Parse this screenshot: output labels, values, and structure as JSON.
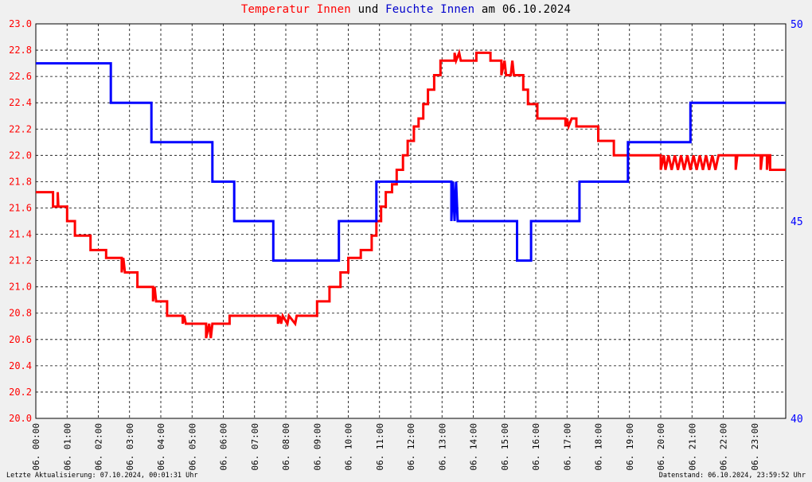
{
  "chart_data": {
    "type": "line",
    "title_parts": {
      "temp_label": "Temperatur Innen",
      "joiner": "und",
      "hum_label": "Feuchte Innen",
      "date_prefix": "am",
      "date": "06.10.2024"
    },
    "y_left": {
      "min": 20.0,
      "max": 23.0,
      "step": 0.2,
      "ticks": [
        "20.0",
        "20.2",
        "20.4",
        "20.6",
        "20.8",
        "21.0",
        "21.2",
        "21.4",
        "21.6",
        "21.8",
        "22.0",
        "22.2",
        "22.4",
        "22.6",
        "22.8",
        "23.0"
      ]
    },
    "y_right": {
      "min": 40,
      "max": 50,
      "ticks": [
        "40",
        "45",
        "50"
      ]
    },
    "x_range_hours": [
      0,
      24
    ],
    "x_ticks": [
      "06. 00:00",
      "06. 01:00",
      "06. 02:00",
      "06. 03:00",
      "06. 04:00",
      "06. 05:00",
      "06. 06:00",
      "06. 07:00",
      "06. 08:00",
      "06. 09:00",
      "06. 10:00",
      "06. 11:00",
      "06. 12:00",
      "06. 13:00",
      "06. 14:00",
      "06. 15:00",
      "06. 16:00",
      "06. 17:00",
      "06. 18:00",
      "06. 19:00",
      "06. 20:00",
      "06. 21:00",
      "06. 22:00",
      "06. 23:00"
    ],
    "grid": true,
    "colors": {
      "temperature": "#ff0000",
      "humidity": "#0000ff",
      "background": "#ffffff",
      "grid": "#000000"
    },
    "series": [
      {
        "axis": "left",
        "color": "#ff0000",
        "points": [
          [
            0.0,
            21.72
          ],
          [
            0.55,
            21.72
          ],
          [
            0.55,
            21.61
          ],
          [
            0.7,
            21.61
          ],
          [
            0.7,
            21.72
          ],
          [
            0.72,
            21.61
          ],
          [
            1.0,
            21.61
          ],
          [
            1.0,
            21.5
          ],
          [
            1.25,
            21.5
          ],
          [
            1.25,
            21.39
          ],
          [
            1.75,
            21.39
          ],
          [
            1.75,
            21.28
          ],
          [
            2.25,
            21.28
          ],
          [
            2.25,
            21.22
          ],
          [
            2.75,
            21.22
          ],
          [
            2.75,
            21.11
          ],
          [
            2.8,
            21.22
          ],
          [
            2.85,
            21.11
          ],
          [
            3.25,
            21.11
          ],
          [
            3.25,
            21.0
          ],
          [
            3.75,
            21.0
          ],
          [
            3.75,
            20.89
          ],
          [
            3.8,
            21.0
          ],
          [
            3.85,
            20.89
          ],
          [
            4.2,
            20.89
          ],
          [
            4.2,
            20.78
          ],
          [
            4.7,
            20.78
          ],
          [
            4.7,
            20.72
          ],
          [
            4.75,
            20.78
          ],
          [
            4.8,
            20.72
          ],
          [
            5.45,
            20.72
          ],
          [
            5.45,
            20.61
          ],
          [
            5.55,
            20.72
          ],
          [
            5.6,
            20.61
          ],
          [
            5.65,
            20.72
          ],
          [
            6.2,
            20.72
          ],
          [
            6.2,
            20.78
          ],
          [
            7.75,
            20.78
          ],
          [
            7.75,
            20.72
          ],
          [
            7.8,
            20.78
          ],
          [
            7.85,
            20.72
          ],
          [
            7.9,
            20.78
          ],
          [
            8.05,
            20.72
          ],
          [
            8.1,
            20.78
          ],
          [
            8.3,
            20.72
          ],
          [
            8.35,
            20.78
          ],
          [
            9.0,
            20.78
          ],
          [
            9.0,
            20.89
          ],
          [
            9.4,
            20.89
          ],
          [
            9.4,
            21.0
          ],
          [
            9.75,
            21.0
          ],
          [
            9.75,
            21.11
          ],
          [
            10.0,
            21.11
          ],
          [
            10.0,
            21.22
          ],
          [
            10.4,
            21.22
          ],
          [
            10.4,
            21.28
          ],
          [
            10.75,
            21.28
          ],
          [
            10.75,
            21.39
          ],
          [
            10.9,
            21.39
          ],
          [
            10.9,
            21.5
          ],
          [
            11.05,
            21.5
          ],
          [
            11.05,
            21.61
          ],
          [
            11.2,
            21.61
          ],
          [
            11.2,
            21.72
          ],
          [
            11.4,
            21.72
          ],
          [
            11.4,
            21.78
          ],
          [
            11.55,
            21.78
          ],
          [
            11.55,
            21.89
          ],
          [
            11.75,
            21.89
          ],
          [
            11.75,
            22.0
          ],
          [
            11.9,
            22.0
          ],
          [
            11.9,
            22.11
          ],
          [
            12.1,
            22.11
          ],
          [
            12.1,
            22.22
          ],
          [
            12.25,
            22.22
          ],
          [
            12.25,
            22.28
          ],
          [
            12.4,
            22.28
          ],
          [
            12.4,
            22.39
          ],
          [
            12.55,
            22.39
          ],
          [
            12.55,
            22.5
          ],
          [
            12.75,
            22.5
          ],
          [
            12.75,
            22.61
          ],
          [
            12.95,
            22.61
          ],
          [
            12.95,
            22.72
          ],
          [
            13.4,
            22.72
          ],
          [
            13.4,
            22.78
          ],
          [
            13.45,
            22.72
          ],
          [
            13.55,
            22.78
          ],
          [
            13.6,
            22.72
          ],
          [
            14.1,
            22.72
          ],
          [
            14.1,
            22.78
          ],
          [
            14.55,
            22.78
          ],
          [
            14.55,
            22.72
          ],
          [
            14.9,
            22.72
          ],
          [
            14.9,
            22.61
          ],
          [
            15.0,
            22.72
          ],
          [
            15.05,
            22.61
          ],
          [
            15.2,
            22.61
          ],
          [
            15.25,
            22.72
          ],
          [
            15.3,
            22.61
          ],
          [
            15.6,
            22.61
          ],
          [
            15.6,
            22.5
          ],
          [
            15.75,
            22.5
          ],
          [
            15.75,
            22.39
          ],
          [
            16.05,
            22.39
          ],
          [
            16.05,
            22.28
          ],
          [
            16.95,
            22.28
          ],
          [
            16.95,
            22.22
          ],
          [
            17.0,
            22.28
          ],
          [
            17.05,
            22.22
          ],
          [
            17.15,
            22.28
          ],
          [
            17.3,
            22.28
          ],
          [
            17.3,
            22.22
          ],
          [
            18.0,
            22.22
          ],
          [
            18.0,
            22.11
          ],
          [
            18.5,
            22.11
          ],
          [
            18.5,
            22.0
          ],
          [
            20.0,
            22.0
          ],
          [
            20.0,
            21.89
          ],
          [
            20.1,
            22.0
          ],
          [
            20.15,
            21.89
          ],
          [
            20.25,
            22.0
          ],
          [
            20.35,
            21.89
          ],
          [
            20.45,
            22.0
          ],
          [
            20.55,
            21.89
          ],
          [
            20.65,
            22.0
          ],
          [
            20.75,
            21.89
          ],
          [
            20.85,
            22.0
          ],
          [
            20.95,
            21.89
          ],
          [
            21.05,
            22.0
          ],
          [
            21.15,
            21.89
          ],
          [
            21.25,
            22.0
          ],
          [
            21.35,
            21.89
          ],
          [
            21.45,
            22.0
          ],
          [
            21.55,
            21.89
          ],
          [
            21.65,
            22.0
          ],
          [
            21.75,
            21.89
          ],
          [
            21.85,
            22.0
          ],
          [
            22.4,
            22.0
          ],
          [
            22.4,
            21.89
          ],
          [
            22.45,
            22.0
          ],
          [
            23.2,
            22.0
          ],
          [
            23.2,
            21.89
          ],
          [
            23.25,
            22.0
          ],
          [
            23.4,
            22.0
          ],
          [
            23.4,
            21.89
          ],
          [
            23.45,
            22.0
          ],
          [
            23.5,
            22.0
          ],
          [
            23.5,
            21.89
          ],
          [
            24.0,
            21.89
          ]
        ]
      },
      {
        "axis": "right",
        "color": "#0000ff",
        "points": [
          [
            0.0,
            49.0
          ],
          [
            2.4,
            49.0
          ],
          [
            2.4,
            48.0
          ],
          [
            3.7,
            48.0
          ],
          [
            3.7,
            47.0
          ],
          [
            5.65,
            47.0
          ],
          [
            5.65,
            46.0
          ],
          [
            6.35,
            46.0
          ],
          [
            6.35,
            45.0
          ],
          [
            7.6,
            45.0
          ],
          [
            7.6,
            44.0
          ],
          [
            9.7,
            44.0
          ],
          [
            9.7,
            45.0
          ],
          [
            10.9,
            45.0
          ],
          [
            10.9,
            46.0
          ],
          [
            13.3,
            46.0
          ],
          [
            13.3,
            45.0
          ],
          [
            13.35,
            46.0
          ],
          [
            13.4,
            45.0
          ],
          [
            13.45,
            46.0
          ],
          [
            13.5,
            45.0
          ],
          [
            15.4,
            45.0
          ],
          [
            15.4,
            44.0
          ],
          [
            15.85,
            44.0
          ],
          [
            15.85,
            45.0
          ],
          [
            17.4,
            45.0
          ],
          [
            17.4,
            46.0
          ],
          [
            18.95,
            46.0
          ],
          [
            18.95,
            47.0
          ],
          [
            20.95,
            47.0
          ],
          [
            20.95,
            48.0
          ],
          [
            24.0,
            48.0
          ]
        ]
      }
    ]
  },
  "footer": {
    "left": "Letzte Aktualisierung: 07.10.2024, 00:01:31 Uhr",
    "right": "Datenstand: 06.10.2024, 23:59:52 Uhr"
  }
}
